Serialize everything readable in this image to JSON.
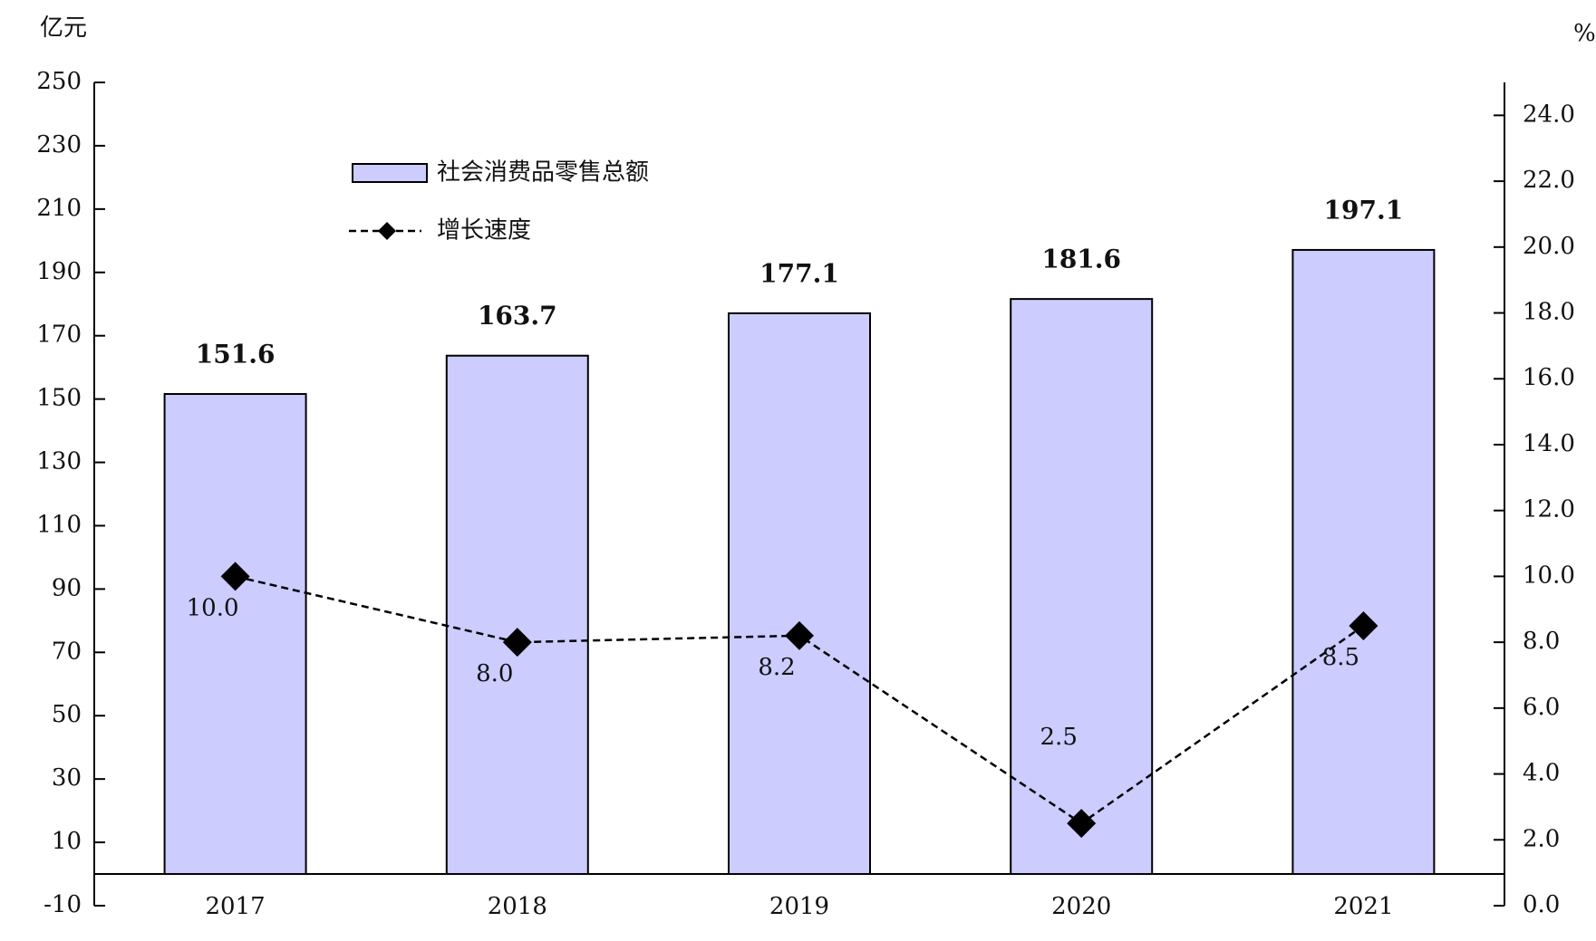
{
  "chart_data": {
    "type": "bar-line",
    "y_unit": "亿元",
    "y2_unit": "%",
    "categories": [
      "2017",
      "2018",
      "2019",
      "2020",
      "2021"
    ],
    "series": [
      {
        "name": "社会消费品零售总额",
        "type": "bar",
        "color": "#ccccff",
        "values": [
          151.6,
          163.7,
          177.1,
          181.6,
          197.1
        ]
      },
      {
        "name": "增长速度",
        "type": "line",
        "axis": "y2",
        "color": "#000000",
        "values": [
          10.0,
          8.0,
          8.2,
          2.5,
          8.5
        ],
        "value_labels": [
          "10.0",
          "8.0",
          "8.2",
          "2.5",
          "8.5"
        ]
      }
    ],
    "ylim": [
      -10,
      250
    ],
    "yticks": [
      -10,
      10,
      30,
      50,
      70,
      90,
      110,
      130,
      150,
      170,
      190,
      210,
      230,
      250
    ],
    "y2lim": [
      0,
      25
    ],
    "y2ticks": [
      {
        "value": 0,
        "label": "0.0"
      },
      {
        "value": 2,
        "label": "2.0"
      },
      {
        "value": 4,
        "label": "4.0"
      },
      {
        "value": 6,
        "label": "6.0"
      },
      {
        "value": 8,
        "label": "8.0"
      },
      {
        "value": 10,
        "label": "10.0"
      },
      {
        "value": 12,
        "label": "12.0"
      },
      {
        "value": 14,
        "label": "14.0"
      },
      {
        "value": 16,
        "label": "16.0"
      },
      {
        "value": 18,
        "label": "18.0"
      },
      {
        "value": 20,
        "label": "20.0"
      },
      {
        "value": 22,
        "label": "22.0"
      },
      {
        "value": 24,
        "label": "24.0"
      }
    ]
  }
}
